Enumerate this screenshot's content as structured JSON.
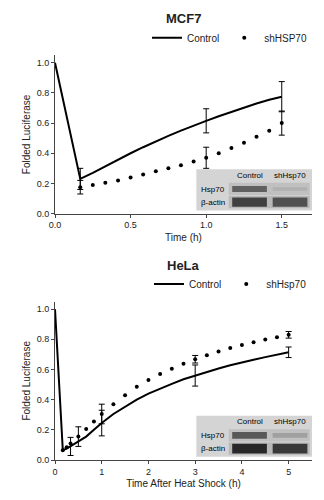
{
  "chart_data": [
    {
      "type": "line",
      "title": "MCF7",
      "x_label": "Time (h)",
      "y_label": "Folded Luciferase",
      "xlim": [
        0,
        1.7
      ],
      "xticks": [
        {
          "value": 0,
          "label": "0.0"
        },
        0.5,
        {
          "value": 1.0,
          "label": "1.0"
        },
        1.5
      ],
      "ylim": [
        0,
        1.05
      ],
      "yticks": [
        {
          "value": 0,
          "label": "0.0"
        },
        0.2,
        0.4,
        0.6,
        0.8,
        {
          "value": 1.0,
          "label": "1.0"
        }
      ],
      "grid": false,
      "legend": "upper right",
      "series": [
        {
          "name": "Control",
          "color": "#000000",
          "line_style": "solid",
          "marker": "none",
          "x": [
            0.0,
            0.167,
            0.25,
            0.333,
            0.417,
            0.5,
            0.583,
            0.667,
            0.75,
            0.833,
            0.917,
            1.0,
            1.083,
            1.167,
            1.25,
            1.333,
            1.417,
            1.5
          ],
          "values": [
            1.0,
            0.23,
            0.27,
            0.315,
            0.36,
            0.4,
            0.44,
            0.48,
            0.515,
            0.55,
            0.585,
            0.615,
            0.645,
            0.675,
            0.705,
            0.73,
            0.755,
            0.775
          ],
          "error_bar_x": [
            0.167,
            1.0,
            1.5
          ],
          "error_bar_y": [
            0.23,
            0.615,
            0.775
          ],
          "error_bar": [
            0.07,
            0.08,
            0.1
          ]
        },
        {
          "name": "shHSP70",
          "color": "#000000",
          "line_style": "none",
          "marker": "circle",
          "x": [
            0.167,
            0.25,
            0.333,
            0.417,
            0.5,
            0.583,
            0.667,
            0.75,
            0.833,
            0.917,
            1.0,
            1.083,
            1.167,
            1.25,
            1.333,
            1.417,
            1.5
          ],
          "values": [
            0.175,
            0.19,
            0.205,
            0.22,
            0.24,
            0.26,
            0.28,
            0.3,
            0.32,
            0.345,
            0.37,
            0.4,
            0.435,
            0.47,
            0.51,
            0.55,
            0.6
          ],
          "error_bar_x": [
            0.167,
            1.0,
            1.5
          ],
          "error_bar_y": [
            0.175,
            0.37,
            0.6
          ],
          "error_bar": [
            0.045,
            0.07,
            0.08
          ]
        }
      ],
      "annotations": {
        "columns": [
          "Control",
          "shHsp70"
        ],
        "rows": [
          "Hsp70",
          "β-actin"
        ]
      }
    },
    {
      "type": "line",
      "title": "HeLa",
      "x_label": "Time After Heat Shock (h)",
      "y_label": "Folded Luciferase",
      "xlim": [
        0,
        5.5
      ],
      "xticks": [
        0,
        1,
        2,
        3,
        4,
        5
      ],
      "ylim": [
        0,
        1.05
      ],
      "yticks": [
        {
          "value": 0,
          "label": "0.0"
        },
        0.2,
        0.4,
        0.6,
        0.8,
        {
          "value": 1.0,
          "label": "1.0"
        }
      ],
      "grid": false,
      "legend": "upper right",
      "series": [
        {
          "name": "Control",
          "color": "#000000",
          "line_style": "solid",
          "marker": "none",
          "x": [
            0.0,
            0.167,
            0.25,
            0.333,
            0.5,
            0.667,
            0.833,
            1.0,
            1.25,
            1.5,
            1.75,
            2.0,
            2.25,
            2.5,
            2.75,
            3.0,
            3.25,
            3.5,
            3.75,
            4.0,
            4.25,
            4.5,
            4.75,
            5.0
          ],
          "values": [
            1.0,
            0.065,
            0.075,
            0.09,
            0.12,
            0.155,
            0.2,
            0.245,
            0.305,
            0.355,
            0.4,
            0.44,
            0.475,
            0.505,
            0.535,
            0.56,
            0.585,
            0.607,
            0.628,
            0.648,
            0.665,
            0.682,
            0.698,
            0.714
          ],
          "error_bar_x": [
            0.333,
            1.0,
            3.0,
            5.0
          ],
          "error_bar_y": [
            0.09,
            0.245,
            0.56,
            0.714
          ],
          "error_bar": [
            0.06,
            0.085,
            0.07,
            0.035
          ]
        },
        {
          "name": "shHsp70",
          "color": "#000000",
          "line_style": "none",
          "marker": "circle",
          "x": [
            0.167,
            0.25,
            0.333,
            0.5,
            0.667,
            0.833,
            1.0,
            1.25,
            1.5,
            1.75,
            2.0,
            2.25,
            2.5,
            2.75,
            3.0,
            3.25,
            3.5,
            3.75,
            4.0,
            4.25,
            4.5,
            4.75,
            5.0
          ],
          "values": [
            0.065,
            0.085,
            0.11,
            0.155,
            0.205,
            0.255,
            0.305,
            0.37,
            0.43,
            0.485,
            0.53,
            0.57,
            0.605,
            0.638,
            0.668,
            0.695,
            0.72,
            0.742,
            0.762,
            0.781,
            0.798,
            0.814,
            0.83
          ],
          "error_bar_x": [
            0.5,
            1.0,
            3.0,
            5.0
          ],
          "error_bar_y": [
            0.155,
            0.305,
            0.668,
            0.83
          ],
          "error_bar": [
            0.065,
            0.065,
            0.025,
            0.022
          ]
        }
      ],
      "annotations": {
        "columns": [
          "Control",
          "shHsp70"
        ],
        "rows": [
          "Hsp70",
          "β-actin"
        ]
      }
    }
  ]
}
